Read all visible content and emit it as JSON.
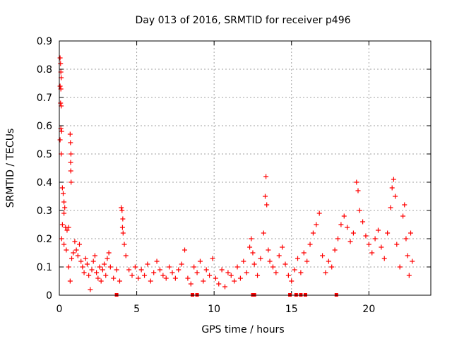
{
  "chart_data": {
    "type": "scatter",
    "title": "Day 013 of 2016, SRMTID for receiver p496",
    "xlabel": "GPS time / hours",
    "ylabel": "SRMTID / TECUs",
    "xlim": [
      0,
      24
    ],
    "ylim": [
      0,
      0.9
    ],
    "grid": true,
    "xticks": [
      0,
      5,
      10,
      15,
      20
    ],
    "xtick_labels": [
      "0",
      "5",
      "10",
      "15",
      "20"
    ],
    "yticks": [
      0,
      0.1,
      0.2,
      0.3,
      0.4,
      0.5,
      0.6,
      0.7,
      0.8,
      0.9
    ],
    "ytick_labels": [
      "0",
      "0.1",
      "0.2",
      "0.3",
      "0.4",
      "0.5",
      "0.6",
      "0.7",
      "0.8",
      "0.9"
    ],
    "marker": "+",
    "color": "#ff0000",
    "series": [
      {
        "name": "SRMTID",
        "points": [
          [
            0.05,
            0.84
          ],
          [
            0.08,
            0.82
          ],
          [
            0.1,
            0.79
          ],
          [
            0.12,
            0.77
          ],
          [
            0.05,
            0.74
          ],
          [
            0.1,
            0.73
          ],
          [
            0.08,
            0.68
          ],
          [
            0.12,
            0.67
          ],
          [
            0.1,
            0.59
          ],
          [
            0.15,
            0.58
          ],
          [
            0.05,
            0.55
          ],
          [
            0.12,
            0.5
          ],
          [
            0.2,
            0.38
          ],
          [
            0.25,
            0.36
          ],
          [
            0.3,
            0.33
          ],
          [
            0.35,
            0.31
          ],
          [
            0.3,
            0.29
          ],
          [
            0.2,
            0.25
          ],
          [
            0.4,
            0.24
          ],
          [
            0.5,
            0.23
          ],
          [
            0.6,
            0.24
          ],
          [
            0.15,
            0.2
          ],
          [
            0.3,
            0.18
          ],
          [
            0.45,
            0.16
          ],
          [
            0.7,
            0.57
          ],
          [
            0.72,
            0.54
          ],
          [
            0.75,
            0.5
          ],
          [
            0.73,
            0.47
          ],
          [
            0.74,
            0.44
          ],
          [
            0.76,
            0.4
          ],
          [
            0.6,
            0.1
          ],
          [
            0.7,
            0.05
          ],
          [
            0.8,
            0.13
          ],
          [
            0.9,
            0.15
          ],
          [
            1.0,
            0.19
          ],
          [
            1.1,
            0.16
          ],
          [
            1.2,
            0.14
          ],
          [
            1.3,
            0.18
          ],
          [
            1.4,
            0.12
          ],
          [
            1.5,
            0.1
          ],
          [
            1.6,
            0.08
          ],
          [
            1.7,
            0.13
          ],
          [
            1.8,
            0.11
          ],
          [
            1.9,
            0.07
          ],
          [
            2.0,
            0.02
          ],
          [
            2.1,
            0.09
          ],
          [
            2.2,
            0.12
          ],
          [
            2.3,
            0.14
          ],
          [
            2.4,
            0.08
          ],
          [
            2.5,
            0.06
          ],
          [
            2.6,
            0.1
          ],
          [
            2.7,
            0.05
          ],
          [
            2.8,
            0.09
          ],
          [
            2.9,
            0.11
          ],
          [
            3.0,
            0.07
          ],
          [
            3.1,
            0.13
          ],
          [
            3.2,
            0.15
          ],
          [
            3.3,
            0.1
          ],
          [
            3.5,
            0.06
          ],
          [
            3.7,
            0.09
          ],
          [
            3.9,
            0.05
          ],
          [
            4.0,
            0.31
          ],
          [
            4.05,
            0.3
          ],
          [
            4.1,
            0.27
          ],
          [
            4.08,
            0.24
          ],
          [
            4.12,
            0.22
          ],
          [
            4.2,
            0.18
          ],
          [
            4.3,
            0.14
          ],
          [
            4.5,
            0.09
          ],
          [
            4.7,
            0.07
          ],
          [
            4.9,
            0.1
          ],
          [
            5.1,
            0.06
          ],
          [
            5.3,
            0.09
          ],
          [
            5.5,
            0.07
          ],
          [
            5.7,
            0.11
          ],
          [
            5.9,
            0.05
          ],
          [
            6.1,
            0.08
          ],
          [
            6.3,
            0.12
          ],
          [
            6.5,
            0.09
          ],
          [
            6.7,
            0.07
          ],
          [
            6.9,
            0.06
          ],
          [
            7.1,
            0.1
          ],
          [
            7.3,
            0.08
          ],
          [
            7.5,
            0.06
          ],
          [
            7.7,
            0.09
          ],
          [
            7.9,
            0.11
          ],
          [
            8.1,
            0.16
          ],
          [
            8.3,
            0.06
          ],
          [
            8.5,
            0.04
          ],
          [
            8.7,
            0.1
          ],
          [
            8.9,
            0.08
          ],
          [
            9.1,
            0.12
          ],
          [
            9.3,
            0.05
          ],
          [
            9.5,
            0.09
          ],
          [
            9.7,
            0.07
          ],
          [
            9.9,
            0.13
          ],
          [
            10.1,
            0.06
          ],
          [
            10.3,
            0.04
          ],
          [
            10.5,
            0.09
          ],
          [
            10.7,
            0.03
          ],
          [
            10.9,
            0.08
          ],
          [
            11.1,
            0.07
          ],
          [
            11.3,
            0.05
          ],
          [
            11.5,
            0.1
          ],
          [
            11.7,
            0.06
          ],
          [
            11.9,
            0.12
          ],
          [
            12.1,
            0.08
          ],
          [
            12.3,
            0.17
          ],
          [
            12.4,
            0.2
          ],
          [
            12.5,
            0.15
          ],
          [
            12.6,
            0.11
          ],
          [
            12.8,
            0.07
          ],
          [
            13.0,
            0.13
          ],
          [
            13.2,
            0.22
          ],
          [
            13.3,
            0.35
          ],
          [
            13.35,
            0.42
          ],
          [
            13.4,
            0.32
          ],
          [
            13.5,
            0.16
          ],
          [
            13.6,
            0.12
          ],
          [
            13.8,
            0.1
          ],
          [
            14.0,
            0.08
          ],
          [
            14.2,
            0.14
          ],
          [
            14.4,
            0.17
          ],
          [
            14.6,
            0.11
          ],
          [
            14.8,
            0.07
          ],
          [
            15.0,
            0.05
          ],
          [
            15.2,
            0.09
          ],
          [
            15.4,
            0.13
          ],
          [
            15.6,
            0.08
          ],
          [
            15.8,
            0.15
          ],
          [
            16.0,
            0.12
          ],
          [
            16.2,
            0.18
          ],
          [
            16.4,
            0.22
          ],
          [
            16.6,
            0.25
          ],
          [
            16.8,
            0.29
          ],
          [
            17.0,
            0.14
          ],
          [
            17.2,
            0.08
          ],
          [
            17.4,
            0.12
          ],
          [
            17.6,
            0.1
          ],
          [
            17.8,
            0.16
          ],
          [
            18.0,
            0.2
          ],
          [
            18.2,
            0.25
          ],
          [
            18.4,
            0.28
          ],
          [
            18.6,
            0.24
          ],
          [
            18.8,
            0.19
          ],
          [
            19.0,
            0.22
          ],
          [
            19.2,
            0.4
          ],
          [
            19.3,
            0.37
          ],
          [
            19.4,
            0.3
          ],
          [
            19.6,
            0.26
          ],
          [
            19.8,
            0.21
          ],
          [
            20.0,
            0.18
          ],
          [
            20.2,
            0.15
          ],
          [
            20.4,
            0.2
          ],
          [
            20.6,
            0.23
          ],
          [
            20.8,
            0.17
          ],
          [
            21.0,
            0.13
          ],
          [
            21.2,
            0.22
          ],
          [
            21.4,
            0.31
          ],
          [
            21.5,
            0.38
          ],
          [
            21.6,
            0.41
          ],
          [
            21.7,
            0.35
          ],
          [
            21.8,
            0.18
          ],
          [
            22.0,
            0.1
          ],
          [
            22.2,
            0.28
          ],
          [
            22.3,
            0.32
          ],
          [
            22.4,
            0.2
          ],
          [
            22.5,
            0.14
          ],
          [
            22.6,
            0.07
          ],
          [
            22.7,
            0.22
          ],
          [
            22.8,
            0.12
          ]
        ]
      }
    ],
    "baseline_markers_x": [
      3.7,
      8.6,
      8.9,
      12.5,
      12.6,
      14.9,
      15.3,
      15.6,
      15.9,
      17.9
    ]
  }
}
